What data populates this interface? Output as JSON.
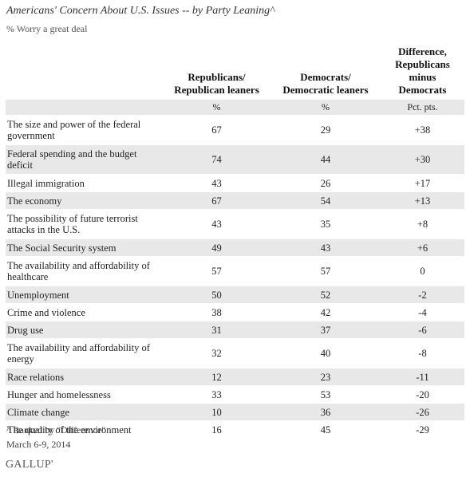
{
  "title": "Americans' Concern About U.S. Issues -- by Party Leaning^",
  "subtitle": "% Worry a great deal",
  "columns": {
    "issue": "",
    "rep": "Republicans/ Republican leaners",
    "dem": "Democrats/ Democratic leaners",
    "diff": "Difference, Republicans minus Democrats"
  },
  "units": {
    "issue": "",
    "rep": "%",
    "dem": "%",
    "diff": "Pct. pts."
  },
  "rows": [
    {
      "issue": "The size and power of the federal government",
      "rep": "67",
      "dem": "29",
      "diff": "+38",
      "lines": 2,
      "shade": false
    },
    {
      "issue": "Federal spending and the budget deficit",
      "rep": "74",
      "dem": "44",
      "diff": "+30",
      "lines": 2,
      "shade": true
    },
    {
      "issue": "Illegal immigration",
      "rep": "43",
      "dem": "26",
      "diff": "+17",
      "lines": 1,
      "shade": false
    },
    {
      "issue": "The economy",
      "rep": "67",
      "dem": "54",
      "diff": "+13",
      "lines": 1,
      "shade": true
    },
    {
      "issue": "The possibility of future terrorist attacks in the U.S.",
      "rep": "43",
      "dem": "35",
      "diff": "+8",
      "lines": 2,
      "shade": false
    },
    {
      "issue": "The Social Security system",
      "rep": "49",
      "dem": "43",
      "diff": "+6",
      "lines": 1,
      "shade": true
    },
    {
      "issue": "The availability and affordability of healthcare",
      "rep": "57",
      "dem": "57",
      "diff": "0",
      "lines": 2,
      "shade": false
    },
    {
      "issue": "Unemployment",
      "rep": "50",
      "dem": "52",
      "diff": "-2",
      "lines": 1,
      "shade": true
    },
    {
      "issue": "Crime and violence",
      "rep": "38",
      "dem": "42",
      "diff": "-4",
      "lines": 1,
      "shade": false
    },
    {
      "issue": "Drug use",
      "rep": "31",
      "dem": "37",
      "diff": "-6",
      "lines": 1,
      "shade": true
    },
    {
      "issue": "The availability and affordability of energy",
      "rep": "32",
      "dem": "40",
      "diff": "-8",
      "lines": 2,
      "shade": false
    },
    {
      "issue": "Race relations",
      "rep": "12",
      "dem": "23",
      "diff": "-11",
      "lines": 1,
      "shade": true
    },
    {
      "issue": "Hunger and homelessness",
      "rep": "33",
      "dem": "53",
      "diff": "-20",
      "lines": 1,
      "shade": false
    },
    {
      "issue": "Climate change",
      "rep": "10",
      "dem": "36",
      "diff": "-26",
      "lines": 1,
      "shade": true
    },
    {
      "issue": "The quality of the environment",
      "rep": "16",
      "dem": "45",
      "diff": "-29",
      "lines": 1,
      "shade": false
    }
  ],
  "notes": {
    "ranked": "^ Ranked by \"Difference\"",
    "date": "March 6-9, 2014"
  },
  "logo": "GALLUP'",
  "colors": {
    "shade": "#e8e8e8",
    "text": "#222222"
  },
  "chart_data": {
    "type": "table",
    "title": "Americans' Concern About U.S. Issues -- by Party Leaning^",
    "subtitle": "% Worry a great deal",
    "columns": [
      "",
      "Republicans/ Republican leaners",
      "Democrats/ Democratic leaners",
      "Difference, Republicans minus Democrats"
    ],
    "units": [
      "",
      "%",
      "%",
      "Pct. pts."
    ],
    "categories": [
      "The size and power of the federal government",
      "Federal spending and the budget deficit",
      "Illegal immigration",
      "The economy",
      "The possibility of future terrorist attacks in the U.S.",
      "The Social Security system",
      "The availability and affordability of healthcare",
      "Unemployment",
      "Crime and violence",
      "Drug use",
      "The availability and affordability of energy",
      "Race relations",
      "Hunger and homelessness",
      "Climate change",
      "The quality of the environment"
    ],
    "series": [
      {
        "name": "Republicans/ Republican leaners",
        "values": [
          67,
          74,
          43,
          67,
          43,
          49,
          57,
          50,
          38,
          31,
          32,
          12,
          33,
          10,
          16
        ]
      },
      {
        "name": "Democrats/ Democratic leaners",
        "values": [
          29,
          44,
          26,
          54,
          35,
          43,
          57,
          52,
          42,
          37,
          40,
          23,
          53,
          36,
          45
        ]
      },
      {
        "name": "Difference, Republicans minus Democrats",
        "values": [
          38,
          30,
          17,
          13,
          8,
          6,
          0,
          -2,
          -4,
          -6,
          -8,
          -11,
          -20,
          -26,
          -29
        ]
      }
    ]
  }
}
